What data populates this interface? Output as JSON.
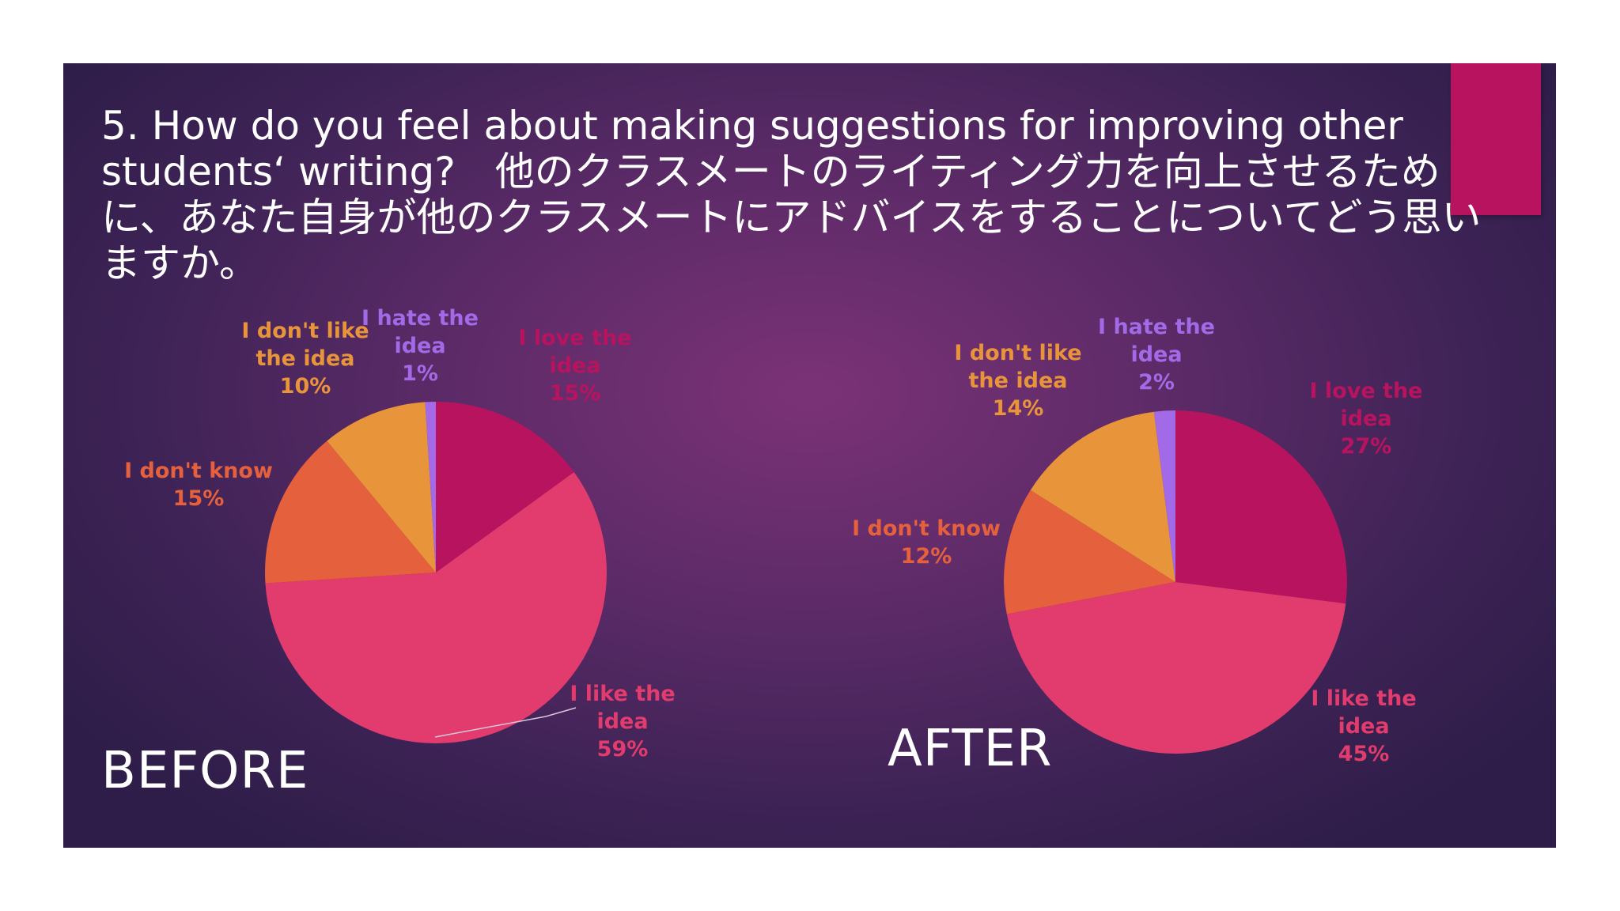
{
  "slide": {
    "title": "5. How do you feel about making suggestions for improving other students‘ writing?　他のクラスメートのライティング力を向上させるために、あなた自身が他のクラスメートにアドバイスをすることについてどう思いますか。",
    "accent_color": "#b8135f"
  },
  "chart_data": [
    {
      "type": "pie",
      "title": "BEFORE",
      "slices": [
        {
          "label": "I love the idea",
          "value": 15,
          "pct": "15%",
          "color": "#b8135f"
        },
        {
          "label": "I like the idea",
          "value": 59,
          "pct": "59%",
          "color": "#e23b6d"
        },
        {
          "label": "I don't know",
          "value": 15,
          "pct": "15%",
          "color": "#e5603c"
        },
        {
          "label": "I don't like the idea",
          "value": 10,
          "pct": "10%",
          "color": "#e8943a"
        },
        {
          "label": "I hate the idea",
          "value": 1,
          "pct": "1%",
          "color": "#a36ae8"
        }
      ]
    },
    {
      "type": "pie",
      "title": "AFTER",
      "slices": [
        {
          "label": "I love the idea",
          "value": 27,
          "pct": "27%",
          "color": "#b8135f"
        },
        {
          "label": "I like the idea",
          "value": 45,
          "pct": "45%",
          "color": "#e23b6d"
        },
        {
          "label": "I don't know",
          "value": 12,
          "pct": "12%",
          "color": "#e5603c"
        },
        {
          "label": "I don't like the idea",
          "value": 14,
          "pct": "14%",
          "color": "#e8943a"
        },
        {
          "label": "I hate the idea",
          "value": 2,
          "pct": "2%",
          "color": "#a36ae8"
        }
      ]
    }
  ]
}
